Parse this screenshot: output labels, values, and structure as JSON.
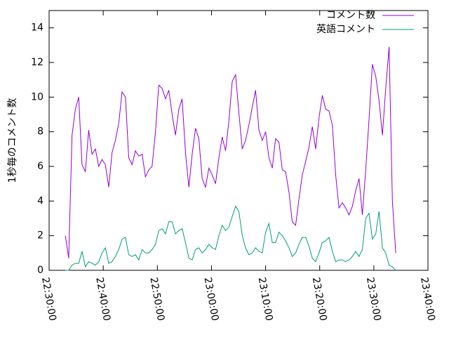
{
  "chart_data": {
    "type": "line",
    "ylabel": "1秒毎のコメント数",
    "x": [
      "22:33:00",
      "22:33:37",
      "22:34:14",
      "22:34:51",
      "22:35:28",
      "22:36:05",
      "22:36:42",
      "22:37:19",
      "22:37:56",
      "22:38:33",
      "22:39:10",
      "22:39:47",
      "22:40:24",
      "22:41:01",
      "22:41:38",
      "22:42:15",
      "22:42:52",
      "22:43:29",
      "22:44:06",
      "22:44:43",
      "22:45:20",
      "22:45:57",
      "22:46:34",
      "22:47:11",
      "22:47:48",
      "22:48:25",
      "22:49:02",
      "22:49:39",
      "22:50:16",
      "22:50:53",
      "22:51:30",
      "22:52:07",
      "22:52:44",
      "22:53:21",
      "22:53:58",
      "22:54:35",
      "22:55:12",
      "22:55:49",
      "22:56:26",
      "22:57:03",
      "22:57:40",
      "22:58:17",
      "22:58:54",
      "22:59:31",
      "23:00:08",
      "23:00:45",
      "23:01:22",
      "23:01:59",
      "23:02:36",
      "23:03:13",
      "23:03:50",
      "23:04:27",
      "23:05:04",
      "23:05:41",
      "23:06:18",
      "23:06:55",
      "23:07:32",
      "23:08:09",
      "23:08:46",
      "23:09:23",
      "23:10:00",
      "23:10:37",
      "23:11:14",
      "23:11:51",
      "23:12:28",
      "23:13:05",
      "23:13:42",
      "23:14:19",
      "23:14:56",
      "23:15:33",
      "23:16:10",
      "23:16:47",
      "23:17:24",
      "23:18:01",
      "23:18:38",
      "23:19:15",
      "23:19:52",
      "23:20:29",
      "23:21:06",
      "23:21:43",
      "23:22:20",
      "23:22:57",
      "23:23:34",
      "23:24:11",
      "23:24:48",
      "23:25:25",
      "23:26:02",
      "23:26:39",
      "23:27:16",
      "23:27:53",
      "23:28:30",
      "23:29:07",
      "23:29:44",
      "23:30:21",
      "23:30:58",
      "23:31:35",
      "23:32:12",
      "23:32:49",
      "23:33:26",
      "23:34:03"
    ],
    "series": [
      {
        "name": "コメント数",
        "color": "#9400d3",
        "values": [
          2.0,
          0.7,
          7.8,
          9.3,
          10.0,
          6.1,
          5.7,
          8.1,
          6.7,
          7.0,
          6.0,
          6.4,
          6.1,
          4.8,
          6.8,
          7.5,
          8.5,
          10.3,
          10.0,
          6.5,
          6.1,
          6.9,
          6.6,
          6.7,
          5.4,
          5.8,
          6.0,
          8.0,
          10.7,
          10.5,
          9.9,
          10.4,
          9.0,
          7.8,
          9.3,
          9.9,
          6.8,
          4.8,
          6.7,
          8.2,
          7.6,
          5.3,
          4.8,
          5.9,
          5.5,
          5.0,
          6.5,
          7.7,
          6.9,
          8.6,
          10.9,
          11.3,
          9.1,
          7.0,
          7.5,
          8.4,
          9.4,
          10.4,
          8.1,
          7.5,
          8.0,
          6.5,
          5.9,
          7.6,
          7.4,
          5.8,
          5.7,
          4.5,
          2.8,
          2.6,
          4.1,
          5.5,
          6.3,
          7.1,
          8.3,
          7.0,
          8.8,
          10.1,
          9.3,
          9.2,
          8.4,
          5.5,
          3.6,
          3.9,
          3.6,
          3.2,
          3.7,
          4.6,
          5.3,
          3.2,
          5.8,
          8.7,
          11.9,
          11.2,
          9.8,
          7.8,
          10.5,
          12.9,
          4.0,
          1.0
        ]
      },
      {
        "name": "英語コメント",
        "color": "#009e73",
        "values": [
          0,
          0,
          0.3,
          0.4,
          0.4,
          1.1,
          0.2,
          0.5,
          0.4,
          0.3,
          0.5,
          1.0,
          1.3,
          0.4,
          0.5,
          0.8,
          1.2,
          1.8,
          1.9,
          0.9,
          0.8,
          0.9,
          0.6,
          1.2,
          1.0,
          1.0,
          1.2,
          1.5,
          2.3,
          2.4,
          2.1,
          2.8,
          2.8,
          2.1,
          2.3,
          2.4,
          1.6,
          0.7,
          0.6,
          1.2,
          1.3,
          1.0,
          1.2,
          1.5,
          1.3,
          1.2,
          2.0,
          2.6,
          2.3,
          2.5,
          3.1,
          3.7,
          3.4,
          2.0,
          1.3,
          0.9,
          1.0,
          1.3,
          1.1,
          1.0,
          2.2,
          2.7,
          1.6,
          1.6,
          2.2,
          2.0,
          1.7,
          1.3,
          0.8,
          1.0,
          1.5,
          1.9,
          1.9,
          1.4,
          0.7,
          0.5,
          1.0,
          1.6,
          1.7,
          1.9,
          1.1,
          0.5,
          0.6,
          0.6,
          0.5,
          0.6,
          0.8,
          1.1,
          0.8,
          1.2,
          3.0,
          3.3,
          1.8,
          2.1,
          3.4,
          1.3,
          1.0,
          0.3,
          0.2,
          0.0
        ]
      }
    ],
    "xlim": [
      "22:30:00",
      "23:40:00"
    ],
    "xticks": [
      "22:30:00",
      "22:40:00",
      "22:50:00",
      "23:00:00",
      "23:10:00",
      "23:20:00",
      "23:30:00",
      "23:40:00"
    ],
    "ylim": [
      0,
      15
    ],
    "yticks": [
      0,
      2,
      4,
      6,
      8,
      10,
      12,
      14
    ],
    "legend": "top-right",
    "grid": false
  }
}
